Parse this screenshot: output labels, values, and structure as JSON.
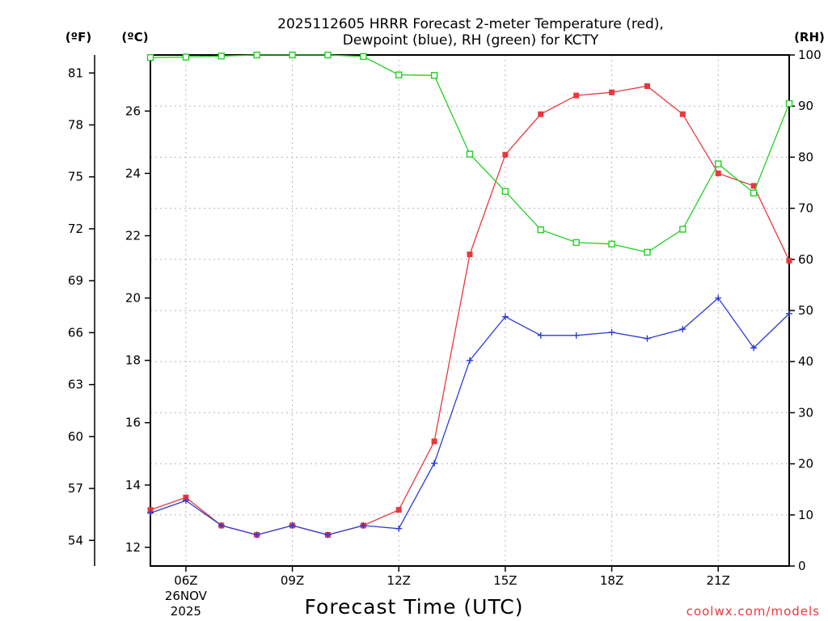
{
  "chart_data": {
    "type": "line",
    "title_lines": [
      "2025112605 HRRR Forecast 2-meter Temperature (red),",
      "Dewpoint (blue), RH (green) for KCTY"
    ],
    "xlabel": "Forecast Time (UTC)",
    "credit": "coolwx.com/models",
    "units": {
      "f": "(ºF)",
      "c": "(ºC)",
      "rh": "(RH)"
    },
    "x_hours": [
      5,
      6,
      7,
      8,
      9,
      10,
      11,
      12,
      13,
      14,
      15,
      16,
      17,
      18,
      19,
      20,
      21,
      22,
      23
    ],
    "xlim": [
      5,
      23
    ],
    "x_ticks": [
      {
        "hour": 6,
        "label": "06Z",
        "date": "26NOV",
        "year": "2025"
      },
      {
        "hour": 9,
        "label": "09Z"
      },
      {
        "hour": 12,
        "label": "12Z"
      },
      {
        "hour": 15,
        "label": "15Z"
      },
      {
        "hour": 18,
        "label": "18Z"
      },
      {
        "hour": 21,
        "label": "21Z"
      }
    ],
    "celsius_axis": {
      "ylim": [
        11.4,
        27.8
      ],
      "ticks": [
        "12",
        "14",
        "16",
        "18",
        "20",
        "22",
        "24",
        "26"
      ]
    },
    "fahrenheit_axis": {
      "ticks": [
        "54",
        "57",
        "60",
        "63",
        "66",
        "69",
        "72",
        "75",
        "78",
        "81"
      ]
    },
    "rh_axis": {
      "ylim": [
        0,
        100
      ],
      "ticks": [
        "0",
        "10",
        "20",
        "30",
        "40",
        "50",
        "60",
        "70",
        "80",
        "90",
        "100"
      ]
    },
    "series": [
      {
        "name": "Temperature",
        "unit": "C",
        "color": "#e8383d",
        "marker": "filled-square",
        "values": [
          13.2,
          13.6,
          12.7,
          12.4,
          12.7,
          12.4,
          12.7,
          13.2,
          15.4,
          21.4,
          24.6,
          25.9,
          26.5,
          26.6,
          26.8,
          25.9,
          24.0,
          23.6,
          21.2
        ]
      },
      {
        "name": "Dewpoint",
        "unit": "C",
        "color": "#2b3cd8",
        "marker": "plus",
        "values": [
          13.1,
          13.5,
          12.7,
          12.4,
          12.7,
          12.4,
          12.7,
          12.6,
          14.7,
          18.0,
          19.4,
          18.8,
          18.8,
          18.9,
          18.7,
          19.0,
          20.0,
          18.4,
          19.5
        ]
      },
      {
        "name": "RH",
        "unit": "%",
        "color": "#22d022",
        "marker": "open-square",
        "values": [
          99.5,
          99.6,
          99.8,
          100,
          100,
          100,
          99.7,
          96.1,
          96.0,
          80.6,
          73.3,
          65.8,
          63.3,
          63.0,
          61.4,
          65.9,
          78.7,
          73.0,
          90.5
        ]
      }
    ],
    "grid": true
  }
}
